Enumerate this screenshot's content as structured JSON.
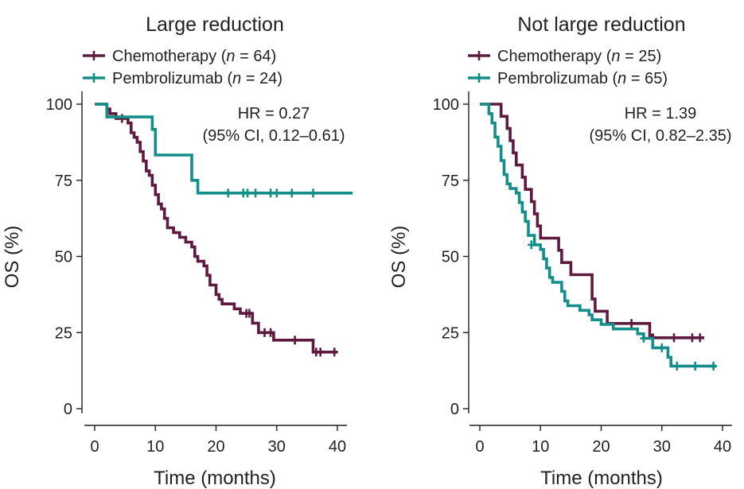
{
  "colors": {
    "chemo": "#5e1a3f",
    "pembro": "#138e8a",
    "axis": "#231f20"
  },
  "chart_data": [
    {
      "type": "line",
      "subtype": "kaplan-meier",
      "title": "Large reduction",
      "xlabel": "Time (months)",
      "ylabel": "OS (%)",
      "xlim": [
        0,
        40
      ],
      "ylim": [
        0,
        100
      ],
      "xticks": [
        "0",
        "10",
        "20",
        "30",
        "40"
      ],
      "yticks": [
        "0",
        "25",
        "50",
        "75",
        "100"
      ],
      "legend": [
        {
          "prefix": "Chemotherapy (",
          "n": "n",
          "suffix": " = 64)"
        },
        {
          "prefix": "Pembrolizumab (",
          "n": "n",
          "suffix": " = 24)"
        }
      ],
      "annotation": [
        "HR = 0.27",
        "(95% CI, 0.12–0.61)"
      ],
      "series": [
        {
          "name": "Chemotherapy",
          "color_key": "chemo",
          "steps": [
            [
              0,
              100
            ],
            [
              2,
              98.4
            ],
            [
              2.5,
              96.9
            ],
            [
              3.5,
              95.3
            ],
            [
              5.5,
              93.8
            ],
            [
              6,
              90.6
            ],
            [
              6.5,
              89.1
            ],
            [
              7,
              87.5
            ],
            [
              7.5,
              84.4
            ],
            [
              8,
              81.3
            ],
            [
              8.5,
              78.1
            ],
            [
              9,
              76.6
            ],
            [
              9.5,
              73.4
            ],
            [
              10,
              70.3
            ],
            [
              10.5,
              67.2
            ],
            [
              11,
              65.6
            ],
            [
              11.5,
              62.5
            ],
            [
              12,
              59.4
            ],
            [
              13,
              57.8
            ],
            [
              14,
              56.3
            ],
            [
              15,
              54.7
            ],
            [
              16,
              53.1
            ],
            [
              16.5,
              50
            ],
            [
              17,
              48.4
            ],
            [
              18,
              46.9
            ],
            [
              18.5,
              43.8
            ],
            [
              19,
              40.6
            ],
            [
              20,
              37.5
            ],
            [
              20.5,
              35.9
            ],
            [
              21,
              34.4
            ],
            [
              23,
              32.8
            ],
            [
              24,
              31.3
            ],
            [
              26,
              28.1
            ],
            [
              27,
              25
            ],
            [
              29.5,
              22.5
            ],
            [
              36,
              18.6
            ],
            [
              40,
              18.6
            ]
          ],
          "censors": [
            [
              4.5,
              95.3
            ],
            [
              25,
              31.3
            ],
            [
              25.5,
              31.3
            ],
            [
              28,
              25
            ],
            [
              29,
              25
            ],
            [
              33,
              22.5
            ],
            [
              36.5,
              18.6
            ],
            [
              37.2,
              18.6
            ],
            [
              39.5,
              18.6
            ]
          ]
        },
        {
          "name": "Pembrolizumab",
          "color_key": "pembro",
          "steps": [
            [
              0,
              100
            ],
            [
              2,
              95.8
            ],
            [
              9.5,
              91.7
            ],
            [
              10,
              83.3
            ],
            [
              16,
              75
            ],
            [
              17,
              70.8
            ],
            [
              42.5,
              70.8
            ]
          ],
          "censors": [
            [
              22,
              70.8
            ],
            [
              24.5,
              70.8
            ],
            [
              25.2,
              70.8
            ],
            [
              26.5,
              70.8
            ],
            [
              29,
              70.8
            ],
            [
              30,
              70.8
            ],
            [
              32.5,
              70.8
            ],
            [
              36,
              70.8
            ]
          ]
        }
      ]
    },
    {
      "type": "line",
      "subtype": "kaplan-meier",
      "title": "Not large reduction",
      "xlabel": "Time (months)",
      "ylabel": "OS (%)",
      "xlim": [
        0,
        40
      ],
      "ylim": [
        0,
        100
      ],
      "xticks": [
        "0",
        "10",
        "20",
        "30",
        "40"
      ],
      "yticks": [
        "0",
        "25",
        "50",
        "75",
        "100"
      ],
      "legend": [
        {
          "prefix": "Chemotherapy (",
          "n": "n",
          "suffix": " = 25)"
        },
        {
          "prefix": "Pembrolizumab (",
          "n": "n",
          "suffix": " = 65)"
        }
      ],
      "annotation": [
        "HR = 1.39",
        "(95% CI, 0.82–2.35)"
      ],
      "series": [
        {
          "name": "Chemotherapy",
          "color_key": "chemo",
          "steps": [
            [
              0,
              100
            ],
            [
              3.5,
              96
            ],
            [
              4.5,
              92
            ],
            [
              5,
              88
            ],
            [
              5.5,
              84
            ],
            [
              6,
              80
            ],
            [
              7,
              76
            ],
            [
              7.5,
              72
            ],
            [
              8.5,
              68
            ],
            [
              9,
              64
            ],
            [
              9.5,
              60
            ],
            [
              10,
              56
            ],
            [
              13,
              52
            ],
            [
              13.5,
              48
            ],
            [
              15,
              44
            ],
            [
              18.5,
              36
            ],
            [
              19,
              32
            ],
            [
              21,
              28
            ],
            [
              28,
              24
            ],
            [
              28.5,
              23.3
            ],
            [
              37,
              23.3
            ]
          ],
          "censors": [
            [
              25,
              28
            ],
            [
              28.5,
              23.3
            ],
            [
              32,
              23.3
            ],
            [
              35,
              23.3
            ],
            [
              36.3,
              23.3
            ]
          ]
        },
        {
          "name": "Pembrolizumab",
          "color_key": "pembro",
          "steps": [
            [
              0,
              100
            ],
            [
              1.5,
              96.9
            ],
            [
              2,
              93.8
            ],
            [
              2.5,
              89.2
            ],
            [
              3,
              86.2
            ],
            [
              3.5,
              81.5
            ],
            [
              4,
              76.9
            ],
            [
              4.5,
              73.8
            ],
            [
              5,
              72.3
            ],
            [
              6,
              70.8
            ],
            [
              6.5,
              67.7
            ],
            [
              7,
              64.6
            ],
            [
              7.5,
              61.5
            ],
            [
              8,
              56.9
            ],
            [
              9,
              53.8
            ],
            [
              10,
              52.3
            ],
            [
              10.5,
              49.2
            ],
            [
              11,
              46.2
            ],
            [
              11.5,
              43.1
            ],
            [
              12,
              41.5
            ],
            [
              13.5,
              38.5
            ],
            [
              14,
              35.4
            ],
            [
              14.5,
              33.8
            ],
            [
              16.5,
              32.3
            ],
            [
              18,
              30.8
            ],
            [
              18.5,
              29.2
            ],
            [
              20,
              27.7
            ],
            [
              22,
              26.2
            ],
            [
              26,
              24.6
            ],
            [
              27,
              23.1
            ],
            [
              28.5,
              20
            ],
            [
              31,
              16.9
            ],
            [
              31.5,
              14
            ],
            [
              39,
              14
            ]
          ],
          "censors": [
            [
              8.5,
              53.8
            ],
            [
              27,
              23.1
            ],
            [
              30,
              20
            ],
            [
              32.5,
              14
            ],
            [
              35.5,
              14
            ],
            [
              38.5,
              14
            ]
          ]
        }
      ]
    }
  ]
}
